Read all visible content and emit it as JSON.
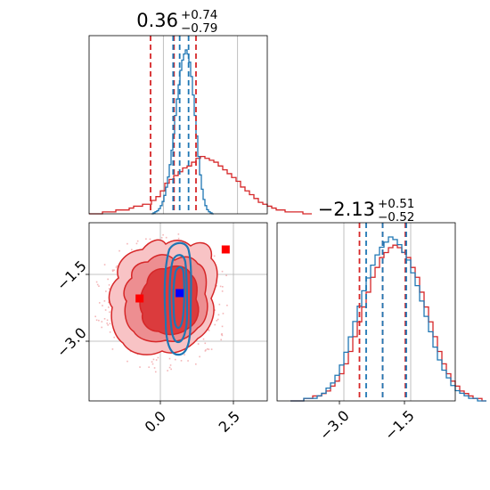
{
  "colors": {
    "red": "#d62728",
    "blue": "#1f77b4",
    "red_fill": "#f6b7b9",
    "red_mid": "#eb7679",
    "grid": "#b0b0b0"
  },
  "chart_data": [
    {
      "type": "histogram",
      "panel": "top-left",
      "parameter_index": 0,
      "title": {
        "median": "0.36",
        "plus": "+0.74",
        "minus": "−0.79"
      },
      "xlim": [
        -2.5,
        3.5
      ],
      "grid": true,
      "series": [
        {
          "name": "",
          "color": "#d62728",
          "quantiles": [
            -0.43,
            0.36,
            1.1
          ],
          "hist": {
            "x0": -2.5,
            "bin": 0.15,
            "counts": [
              0,
              0,
              0,
              1,
              1,
              1,
              2,
              2,
              2,
              3,
              4,
              4,
              5,
              5,
              7,
              9,
              12,
              16,
              18,
              20,
              22,
              24,
              25,
              27,
              29,
              30,
              29,
              28,
              27,
              25,
              23,
              21,
              19,
              17,
              14,
              12,
              10,
              8,
              6,
              5,
              4,
              3,
              2,
              2,
              1,
              1,
              1,
              1,
              0,
              0
            ]
          }
        },
        {
          "name": "",
          "color": "#1f77b4",
          "quantiles": [
            0.33,
            0.55,
            0.85
          ],
          "hist": {
            "x0": -0.4,
            "bin": 0.06,
            "counts": [
              0,
              1,
              2,
              3,
              5,
              8,
              12,
              18,
              26,
              36,
              48,
              62,
              78,
              96,
              112,
              126,
              140,
              150,
              156,
              160,
              156,
              148,
              134,
              116,
              96,
              76,
              56,
              38,
              24,
              14,
              8,
              4,
              2,
              1,
              0
            ]
          }
        }
      ]
    },
    {
      "type": "histogram",
      "panel": "bottom-right",
      "parameter_index": 1,
      "title": {
        "median": "−2.13",
        "plus": "+0.51",
        "minus": "−0.52"
      },
      "xlim": [
        -4.5,
        -0.5
      ],
      "x_ticks": [
        "−3.0",
        "−1.5"
      ],
      "grid": true,
      "series": [
        {
          "name": "",
          "color": "#d62728",
          "quantiles": [
            -2.65,
            -2.13,
            -1.62
          ],
          "hist": {
            "x0": -4.2,
            "bin": 0.1,
            "counts": [
              0,
              0,
              0,
              1,
              1,
              2,
              2,
              3,
              4,
              6,
              8,
              11,
              15,
              20,
              26,
              32,
              38,
              44,
              50,
              54,
              58,
              60,
              62,
              63,
              62,
              60,
              58,
              54,
              50,
              44,
              38,
              32,
              26,
              20,
              15,
              11,
              8,
              6,
              4,
              3,
              2,
              1,
              1,
              0
            ]
          }
        },
        {
          "name": "",
          "color": "#1f77b4",
          "quantiles": [
            -2.5,
            -2.13,
            -1.6
          ],
          "hist": {
            "x0": -4.2,
            "bin": 0.1,
            "counts": [
              0,
              0,
              0,
              1,
              1,
              1,
              2,
              3,
              5,
              7,
              10,
              14,
              19,
              25,
              31,
              37,
              43,
              48,
              53,
              57,
              60,
              62,
              64,
              63,
              61,
              58,
              55,
              50,
              45,
              39,
              33,
              27,
              21,
              16,
              12,
              9,
              6,
              4,
              3,
              2,
              1,
              1,
              0,
              0
            ]
          }
        }
      ]
    },
    {
      "type": "contour",
      "panel": "bottom-left",
      "x_param": 0,
      "y_param": 1,
      "xlim": [
        -2.5,
        3.5
      ],
      "ylim": [
        -4.5,
        -0.5
      ],
      "x_ticks": [
        "0.0",
        "2.5"
      ],
      "y_ticks": [
        "−1.5",
        "−3.0"
      ],
      "grid": true,
      "red_points": [
        {
          "x": -0.8,
          "y": -2.2
        },
        {
          "x": 2.1,
          "y": -1.1
        }
      ],
      "blue_point": {
        "x": 0.55,
        "y": -2.08
      }
    }
  ]
}
